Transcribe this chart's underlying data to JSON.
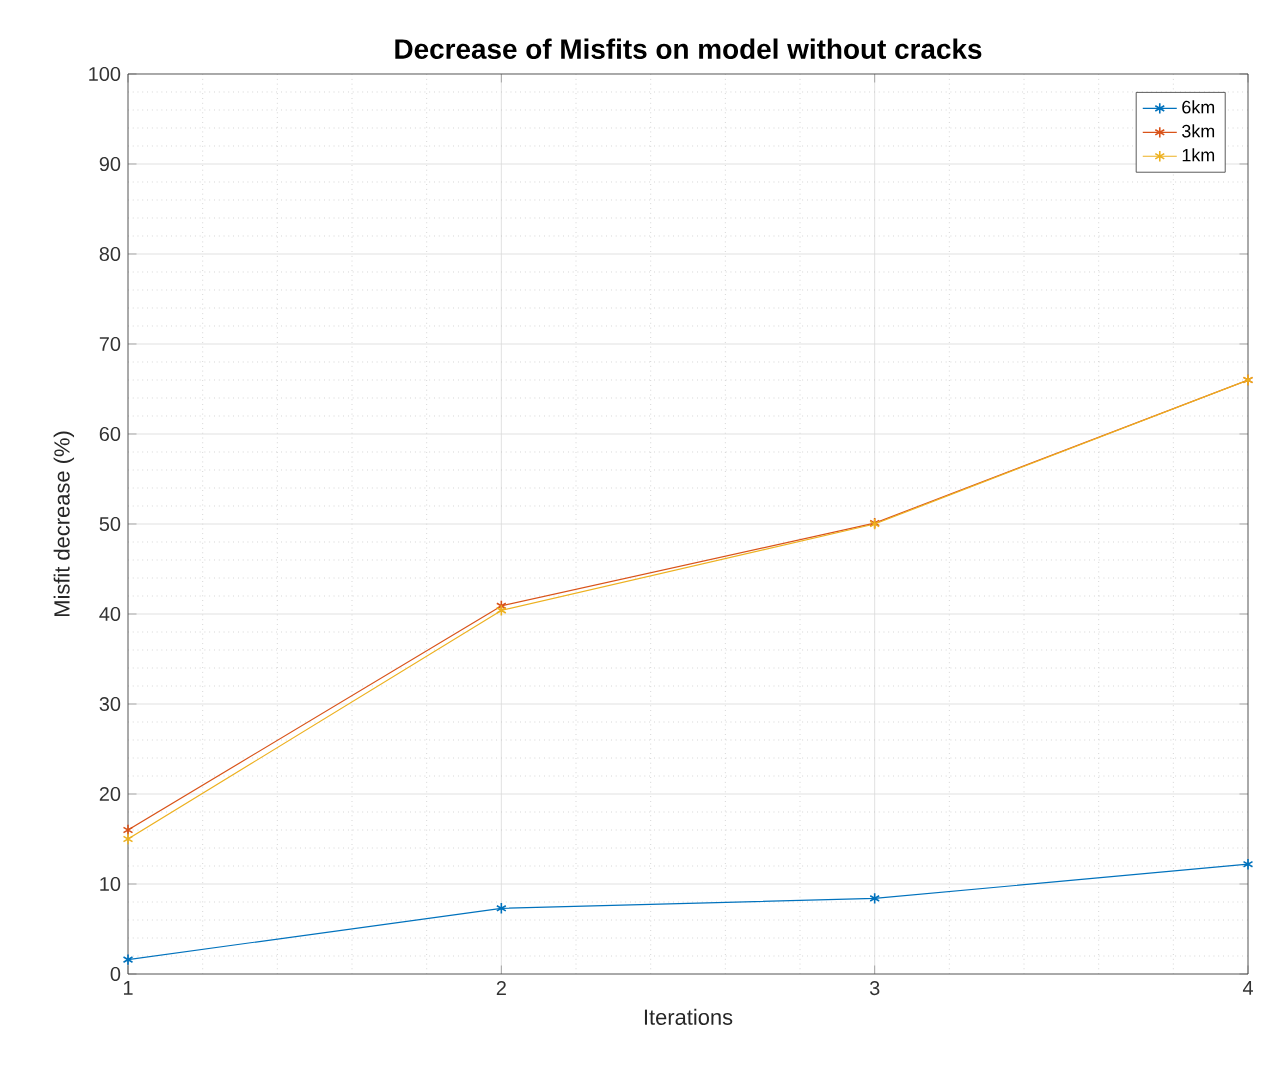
{
  "chart_data": {
    "type": "line",
    "title": "**Decrease of Misfits on model without cracks**",
    "xlabel": "Iterations",
    "ylabel": "Misfit decrease (%)",
    "x": [
      1,
      2,
      3,
      4
    ],
    "series": [
      {
        "name": "6km",
        "color": "#0072bd",
        "values": [
          1.6,
          7.3,
          8.4,
          12.2
        ]
      },
      {
        "name": "3km",
        "color": "#d95319",
        "values": [
          16,
          40.9,
          50.1,
          66
        ]
      },
      {
        "name": "1km",
        "color": "#edb120",
        "values": [
          15,
          40.4,
          50,
          66
        ]
      }
    ],
    "xlim": [
      1,
      4
    ],
    "xticks": [
      1,
      2,
      3,
      4
    ],
    "ylim": [
      0,
      100
    ],
    "yticks": [
      0,
      10,
      20,
      30,
      40,
      50,
      60,
      70,
      80,
      90,
      100
    ],
    "grid": true,
    "legend": "top right",
    "marker": "cross",
    "line_style": "solid"
  }
}
